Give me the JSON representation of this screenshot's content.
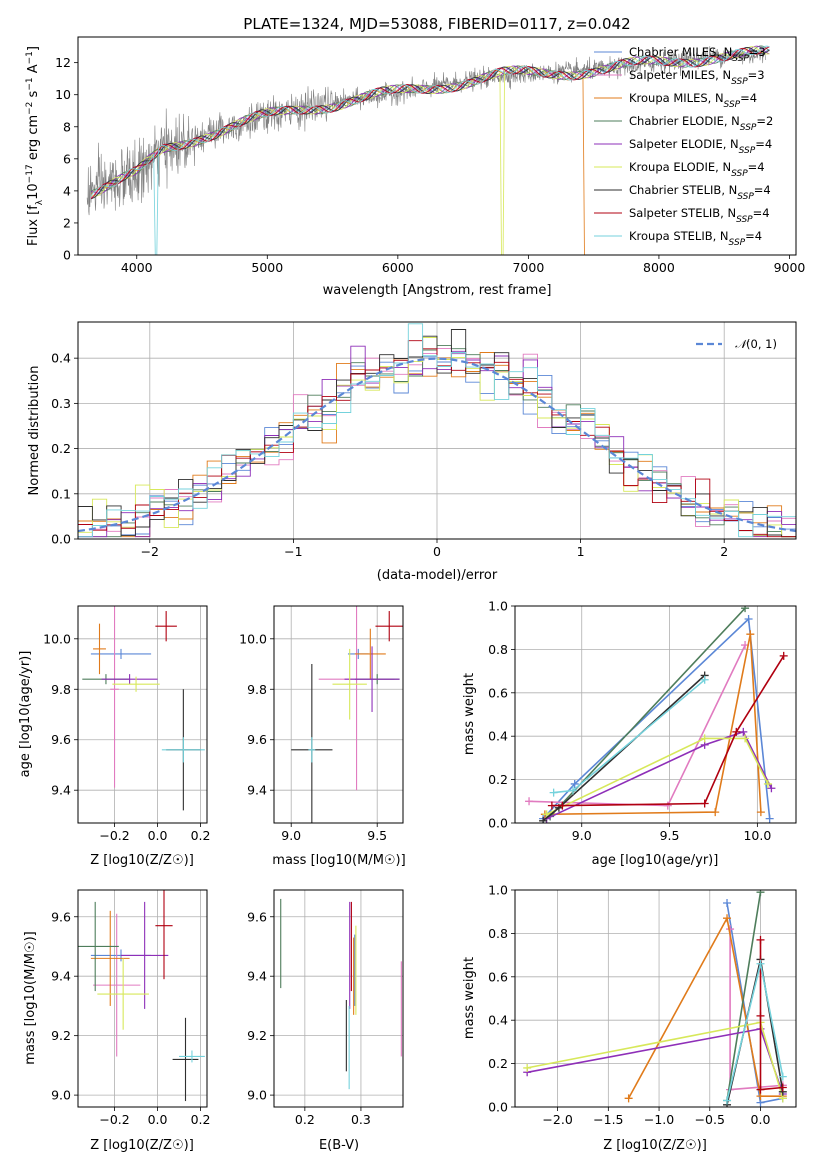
{
  "colors": {
    "chabrier_miles": "#5b87d6",
    "salpeter_miles": "#e17bc0",
    "kroupa_miles": "#e07b1b",
    "chabrier_elodie": "#4e7d5b",
    "salpeter_elodie": "#8e2fb8",
    "kroupa_elodie": "#d7e85a",
    "chabrier_stelib": "#2f2f2f",
    "salpeter_stelib": "#b00010",
    "kroupa_stelib": "#74d2dc",
    "spectrum": "#808080",
    "normal": "#5b87d6"
  },
  "chart_data": [
    {
      "id": "spectrum",
      "type": "line",
      "title": "PLATE=1324, MJD=53088, FIBERID=0117, z=0.042",
      "xlabel": "wavelength [Angstrom, rest frame]",
      "ylabel": "Flux [f_λ 10^-17 erg cm^-2 s^-1 A^-1]",
      "xlim": [
        3550,
        9050
      ],
      "ylim": [
        0,
        13.6
      ],
      "xticks": [
        4000,
        5000,
        6000,
        7000,
        8000,
        9000
      ],
      "yticks": [
        0,
        2,
        4,
        6,
        8,
        10,
        12
      ],
      "grid": false,
      "legend_position": "top-right",
      "legend": [
        "Chabrier MILES, N_SSP=3",
        "Salpeter MILES, N_SSP=3",
        "Kroupa MILES, N_SSP=4",
        "Chabrier ELODIE, N_SSP=2",
        "Salpeter ELODIE, N_SSP=4",
        "Kroupa ELODIE, N_SSP=4",
        "Chabrier STELIB, N_SSP=4",
        "Salpeter STELIB, N_SSP=4",
        "Kroupa STELIB, N_SSP=4"
      ],
      "data_trend": {
        "x": [
          3620,
          3800,
          4000,
          4200,
          4500,
          4800,
          5000,
          5300,
          5600,
          6000,
          6400,
          6800,
          7200,
          7600,
          8000,
          8400,
          8800
        ],
        "y": [
          3.9,
          4.4,
          5.0,
          6.5,
          7.5,
          8.2,
          8.6,
          9.2,
          9.6,
          10.1,
          10.7,
          11.2,
          11.4,
          11.6,
          12.0,
          12.4,
          12.5
        ]
      }
    },
    {
      "id": "residuals",
      "type": "histogram",
      "xlabel": "(data-model)/error",
      "ylabel": "Normed distribution",
      "xlim": [
        -2.5,
        2.5
      ],
      "ylim": [
        0,
        0.48
      ],
      "xticks": [
        -2,
        -1,
        0,
        1,
        2
      ],
      "yticks": [
        0.0,
        0.1,
        0.2,
        0.3,
        0.4
      ],
      "grid": true,
      "legend_position": "top-right",
      "legend": [
        "N(0,1)"
      ],
      "bin_edges_start": -2.5,
      "bin_width": 0.1,
      "bins": 50
    },
    {
      "id": "age_vs_Z",
      "type": "errorbar",
      "xlabel": "Z [log10(Z/Z☉)]",
      "ylabel": "age  [log10(age/yr)]",
      "xlim": [
        -0.37,
        0.23
      ],
      "ylim": [
        9.27,
        10.13
      ],
      "xticks": [
        -0.2,
        0.0,
        0.2
      ],
      "yticks": [
        9.4,
        9.6,
        9.8,
        10.0
      ],
      "grid": true,
      "points": [
        {
          "model": "chabrier_miles",
          "x": -0.17,
          "xerr": 0.14,
          "y": 9.94,
          "yerr": 0.02
        },
        {
          "model": "salpeter_miles",
          "x": -0.2,
          "xerr": 0.02,
          "y": 9.8,
          "yerr": 0.39
        },
        {
          "model": "kroupa_miles",
          "x": -0.27,
          "xerr": 0.03,
          "y": 9.96,
          "yerr": 0.1
        },
        {
          "model": "chabrier_elodie",
          "x": -0.24,
          "xerr": 0.11,
          "y": 9.84,
          "yerr": 0.02
        },
        {
          "model": "salpeter_elodie",
          "x": -0.13,
          "xerr": 0.13,
          "y": 9.84,
          "yerr": 0.02
        },
        {
          "model": "kroupa_elodie",
          "x": -0.1,
          "xerr": 0.11,
          "y": 9.82,
          "yerr": 0.03
        },
        {
          "model": "chabrier_stelib",
          "x": 0.12,
          "xerr": 0.08,
          "y": 9.56,
          "yerr": 0.24
        },
        {
          "model": "salpeter_stelib",
          "x": 0.04,
          "xerr": 0.05,
          "y": 10.05,
          "yerr": 0.06
        },
        {
          "model": "kroupa_stelib",
          "x": 0.12,
          "xerr": 0.1,
          "y": 9.56,
          "yerr": 0.05
        }
      ]
    },
    {
      "id": "age_vs_mass",
      "type": "errorbar",
      "xlabel": "mass [log10(M/M☉)]",
      "ylabel": "",
      "xlim": [
        8.9,
        9.65
      ],
      "ylim": [
        9.27,
        10.13
      ],
      "xticks": [
        9.0,
        9.5
      ],
      "yticks": [
        9.4,
        9.6,
        9.8,
        10.0
      ],
      "grid": true,
      "points": [
        {
          "model": "chabrier_miles",
          "x": 9.39,
          "xerr": 0.06,
          "y": 9.94,
          "yerr": 0.02
        },
        {
          "model": "salpeter_miles",
          "x": 9.38,
          "xerr": 0.22,
          "y": 9.84,
          "yerr": 0.44
        },
        {
          "model": "kroupa_miles",
          "x": 9.46,
          "xerr": 0.09,
          "y": 9.94,
          "yerr": 0.1
        },
        {
          "model": "chabrier_elodie",
          "x": 9.5,
          "xerr": 0.13,
          "y": 9.84,
          "yerr": 0.02
        },
        {
          "model": "salpeter_elodie",
          "x": 9.47,
          "xerr": 0.16,
          "y": 9.84,
          "yerr": 0.13
        },
        {
          "model": "kroupa_elodie",
          "x": 9.34,
          "xerr": 0.1,
          "y": 9.82,
          "yerr": 0.14
        },
        {
          "model": "chabrier_stelib",
          "x": 9.12,
          "xerr": 0.12,
          "y": 9.56,
          "yerr": 0.34
        },
        {
          "model": "salpeter_stelib",
          "x": 9.57,
          "xerr": 0.08,
          "y": 10.05,
          "yerr": 0.06
        },
        {
          "model": "kroupa_stelib",
          "x": 9.12,
          "xerr": 0.02,
          "y": 9.56,
          "yerr": 0.05
        }
      ]
    },
    {
      "id": "massweight_vs_age",
      "type": "line",
      "xlabel": "age  [log10(age/yr)]",
      "ylabel": "mass weight",
      "xlim": [
        8.62,
        10.22
      ],
      "ylim": [
        0,
        1
      ],
      "xticks": [
        9.0,
        9.5,
        10.0
      ],
      "yticks": [
        0.0,
        0.2,
        0.4,
        0.6,
        0.8,
        1.0
      ],
      "grid": true,
      "series": [
        {
          "model": "chabrier_miles",
          "x": [
            8.78,
            8.96,
            9.95,
            10.07
          ],
          "y": [
            0.02,
            0.18,
            0.94,
            0.02
          ]
        },
        {
          "model": "salpeter_miles",
          "x": [
            8.7,
            9.49,
            9.93
          ],
          "y": [
            0.1,
            0.08,
            0.82
          ]
        },
        {
          "model": "kroupa_miles",
          "x": [
            8.79,
            9.76,
            9.96,
            10.02
          ],
          "y": [
            0.04,
            0.05,
            0.87,
            0.05
          ]
        },
        {
          "model": "chabrier_elodie",
          "x": [
            8.82,
            9.93
          ],
          "y": [
            0.03,
            0.99
          ]
        },
        {
          "model": "salpeter_elodie",
          "x": [
            8.8,
            9.7,
            9.92,
            10.08
          ],
          "y": [
            0.02,
            0.36,
            0.42,
            0.16
          ]
        },
        {
          "model": "kroupa_elodie",
          "x": [
            8.8,
            9.7,
            9.93,
            10.06
          ],
          "y": [
            0.04,
            0.39,
            0.39,
            0.18
          ]
        },
        {
          "model": "chabrier_stelib",
          "x": [
            8.78,
            8.87,
            9.7
          ],
          "y": [
            0.01,
            0.07,
            0.68
          ]
        },
        {
          "model": "salpeter_stelib",
          "x": [
            8.83,
            8.89,
            9.7,
            9.88,
            10.15
          ],
          "y": [
            0.08,
            0.08,
            0.09,
            0.42,
            0.77
          ]
        },
        {
          "model": "kroupa_stelib",
          "x": [
            8.84,
            8.95,
            9.7
          ],
          "y": [
            0.14,
            0.15,
            0.66
          ]
        }
      ]
    },
    {
      "id": "mass_vs_Z",
      "type": "errorbar",
      "xlabel": "Z [log10(Z/Z☉)]",
      "ylabel": "mass [log10(M/M☉)]",
      "xlim": [
        -0.37,
        0.23
      ],
      "ylim": [
        8.96,
        9.69
      ],
      "xticks": [
        -0.2,
        0.0,
        0.2
      ],
      "yticks": [
        9.0,
        9.2,
        9.4,
        9.6
      ],
      "grid": true,
      "points": [
        {
          "model": "chabrier_miles",
          "x": -0.17,
          "xerr": 0.14,
          "y": 9.47,
          "yerr": 0.02
        },
        {
          "model": "salpeter_miles",
          "x": -0.19,
          "xerr": 0.11,
          "y": 9.37,
          "yerr": 0.24
        },
        {
          "model": "kroupa_miles",
          "x": -0.22,
          "xerr": 0.09,
          "y": 9.46,
          "yerr": 0.16
        },
        {
          "model": "chabrier_elodie",
          "x": -0.29,
          "xerr": 0.11,
          "y": 9.5,
          "yerr": 0.15
        },
        {
          "model": "salpeter_elodie",
          "x": -0.06,
          "xerr": 0.11,
          "y": 9.47,
          "yerr": 0.18
        },
        {
          "model": "kroupa_elodie",
          "x": -0.16,
          "xerr": 0.12,
          "y": 9.34,
          "yerr": 0.12
        },
        {
          "model": "chabrier_stelib",
          "x": 0.13,
          "xerr": 0.06,
          "y": 9.12,
          "yerr": 0.14
        },
        {
          "model": "salpeter_stelib",
          "x": 0.03,
          "xerr": 0.04,
          "y": 9.57,
          "yerr": 0.18
        },
        {
          "model": "kroupa_stelib",
          "x": 0.16,
          "xerr": 0.06,
          "y": 9.13,
          "yerr": 0.02
        }
      ]
    },
    {
      "id": "mass_vs_ebv",
      "type": "errorbar",
      "xlabel": "E(B-V)",
      "ylabel": "",
      "xlim": [
        0.145,
        0.375
      ],
      "ylim": [
        8.96,
        9.69
      ],
      "xticks": [
        0.2,
        0.3
      ],
      "yticks": [
        9.0,
        9.2,
        9.4,
        9.6
      ],
      "grid": true,
      "points": [
        {
          "model": "chabrier_miles",
          "x": 0.289,
          "xerr": 0,
          "y": 9.42,
          "yerr": 0.12
        },
        {
          "model": "salpeter_miles",
          "x": 0.372,
          "xerr": 0,
          "y": 9.29,
          "yerr": 0.16
        },
        {
          "model": "kroupa_miles",
          "x": 0.287,
          "xerr": 0,
          "y": 9.4,
          "yerr": 0.13
        },
        {
          "model": "chabrier_elodie",
          "x": 0.157,
          "xerr": 0,
          "y": 9.51,
          "yerr": 0.15
        },
        {
          "model": "salpeter_elodie",
          "x": 0.28,
          "xerr": 0,
          "y": 9.47,
          "yerr": 0.18
        },
        {
          "model": "kroupa_elodie",
          "x": 0.291,
          "xerr": 0,
          "y": 9.42,
          "yerr": 0.15
        },
        {
          "model": "chabrier_stelib",
          "x": 0.274,
          "xerr": 0,
          "y": 9.2,
          "yerr": 0.12
        },
        {
          "model": "salpeter_stelib",
          "x": 0.283,
          "xerr": 0,
          "y": 9.5,
          "yerr": 0.15
        },
        {
          "model": "kroupa_stelib",
          "x": 0.279,
          "xerr": 0,
          "y": 9.16,
          "yerr": 0.14
        }
      ]
    },
    {
      "id": "massweight_vs_Z",
      "type": "line",
      "xlabel": "Z [log10(Z/Z☉)]",
      "ylabel": "mass weight",
      "xlim": [
        -2.42,
        0.35
      ],
      "ylim": [
        0,
        1
      ],
      "xticks": [
        -2.0,
        -1.5,
        -1.0,
        -0.5,
        0.0
      ],
      "yticks": [
        0.0,
        0.2,
        0.4,
        0.6,
        0.8,
        1.0
      ],
      "grid": true,
      "series": [
        {
          "model": "chabrier_miles",
          "x": [
            -0.33,
            0.0,
            0.22
          ],
          "y": [
            0.94,
            0.02,
            0.04
          ]
        },
        {
          "model": "salpeter_miles",
          "x": [
            -0.3,
            -0.3,
            0.22
          ],
          "y": [
            0.82,
            0.08,
            0.1
          ]
        },
        {
          "model": "kroupa_miles",
          "x": [
            -1.3,
            -0.33,
            0.0,
            0.22
          ],
          "y": [
            0.04,
            0.87,
            0.05,
            0.05
          ]
        },
        {
          "model": "chabrier_elodie",
          "x": [
            -0.33,
            0.0
          ],
          "y": [
            0.03,
            0.99
          ]
        },
        {
          "model": "salpeter_elodie",
          "x": [
            -2.3,
            0.0,
            0.22
          ],
          "y": [
            0.16,
            0.36,
            0.06
          ]
        },
        {
          "model": "kroupa_elodie",
          "x": [
            -2.3,
            0.0,
            0.22
          ],
          "y": [
            0.18,
            0.39,
            0.04
          ]
        },
        {
          "model": "chabrier_stelib",
          "x": [
            -0.33,
            0.0,
            0.22
          ],
          "y": [
            0.01,
            0.68,
            0.07
          ]
        },
        {
          "model": "salpeter_stelib",
          "x": [
            0.0,
            0.0,
            0.0,
            0.22
          ],
          "y": [
            0.77,
            0.42,
            0.08,
            0.09
          ]
        },
        {
          "model": "kroupa_stelib",
          "x": [
            -0.33,
            0.0,
            0.22
          ],
          "y": [
            0.03,
            0.66,
            0.14
          ]
        }
      ]
    }
  ]
}
